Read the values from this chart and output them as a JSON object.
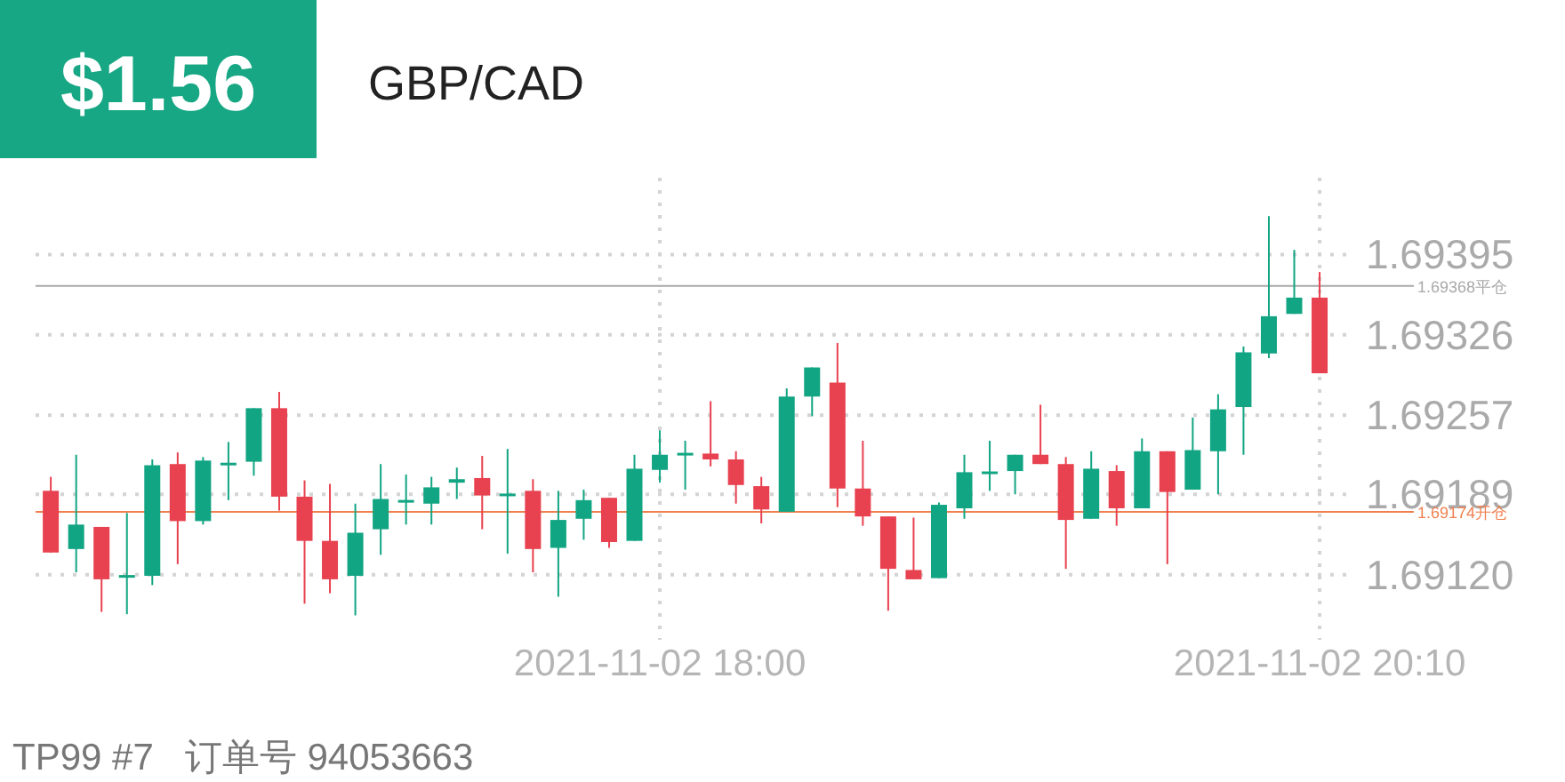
{
  "chart_data": {
    "type": "candlestick",
    "title": "GBP/CAD",
    "annotations": [
      "$1.56",
      "TP99 #7   订单号 94053663"
    ],
    "x": [
      "2021-11-02T16:00",
      "2021-11-02T16:05",
      "2021-11-02T16:10",
      "2021-11-02T16:15",
      "2021-11-02T16:20",
      "2021-11-02T16:25",
      "2021-11-02T16:30",
      "2021-11-02T16:35",
      "2021-11-02T16:40",
      "2021-11-02T16:45",
      "2021-11-02T16:50",
      "2021-11-02T16:55",
      "2021-11-02T17:00",
      "2021-11-02T17:05",
      "2021-11-02T17:10",
      "2021-11-02T17:15",
      "2021-11-02T17:20",
      "2021-11-02T17:25",
      "2021-11-02T17:30",
      "2021-11-02T17:35",
      "2021-11-02T17:40",
      "2021-11-02T17:45",
      "2021-11-02T17:50",
      "2021-11-02T17:55",
      "2021-11-02T18:00",
      "2021-11-02T18:05",
      "2021-11-02T18:10",
      "2021-11-02T18:15",
      "2021-11-02T18:20",
      "2021-11-02T18:25",
      "2021-11-02T18:30",
      "2021-11-02T18:35",
      "2021-11-02T18:40",
      "2021-11-02T18:45",
      "2021-11-02T18:50",
      "2021-11-02T18:55",
      "2021-11-02T19:00",
      "2021-11-02T19:05",
      "2021-11-02T19:10",
      "2021-11-02T19:15",
      "2021-11-02T19:20",
      "2021-11-02T19:25",
      "2021-11-02T19:30",
      "2021-11-02T19:35",
      "2021-11-02T19:40",
      "2021-11-02T19:45",
      "2021-11-02T19:50",
      "2021-11-02T19:55",
      "2021-11-02T20:00",
      "2021-11-02T20:05",
      "2021-11-02T20:10"
    ],
    "ohlc": [
      [
        1.69192,
        1.69204,
        1.69139,
        1.69139
      ],
      [
        1.69142,
        1.69223,
        1.69122,
        1.69163
      ],
      [
        1.69161,
        1.69161,
        1.69088,
        1.69116
      ],
      [
        1.69118,
        1.69173,
        1.69086,
        1.69119
      ],
      [
        1.69119,
        1.69219,
        1.69111,
        1.69214
      ],
      [
        1.69215,
        1.69225,
        1.69129,
        1.69166
      ],
      [
        1.69166,
        1.69221,
        1.69163,
        1.69218
      ],
      [
        1.69214,
        1.69234,
        1.69184,
        1.69216
      ],
      [
        1.69217,
        1.69263,
        1.69205,
        1.69263
      ],
      [
        1.69263,
        1.69277,
        1.69175,
        1.69187
      ],
      [
        1.69187,
        1.69201,
        1.69095,
        1.69149
      ],
      [
        1.69149,
        1.69198,
        1.69104,
        1.69116
      ],
      [
        1.69119,
        1.69181,
        1.69085,
        1.69156
      ],
      [
        1.69159,
        1.69215,
        1.69137,
        1.69185
      ],
      [
        1.69182,
        1.69206,
        1.69163,
        1.69184
      ],
      [
        1.69181,
        1.69204,
        1.69163,
        1.69195
      ],
      [
        1.69199,
        1.69212,
        1.69185,
        1.69202
      ],
      [
        1.69203,
        1.69222,
        1.69159,
        1.69188
      ],
      [
        1.69188,
        1.69228,
        1.69138,
        1.69189
      ],
      [
        1.69192,
        1.69202,
        1.69122,
        1.69142
      ],
      [
        1.69143,
        1.69192,
        1.69101,
        1.69167
      ],
      [
        1.69168,
        1.69193,
        1.6915,
        1.69184
      ],
      [
        1.69186,
        1.69186,
        1.69143,
        1.69148
      ],
      [
        1.69149,
        1.69223,
        1.69149,
        1.69211
      ],
      [
        1.6921,
        1.69244,
        1.69199,
        1.69223
      ],
      [
        1.69223,
        1.69235,
        1.69193,
        1.69224
      ],
      [
        1.69224,
        1.69269,
        1.69213,
        1.69219
      ],
      [
        1.69219,
        1.69226,
        1.69181,
        1.69197
      ],
      [
        1.69196,
        1.69204,
        1.69164,
        1.69176
      ],
      [
        1.69174,
        1.6928,
        1.69174,
        1.69273
      ],
      [
        1.69273,
        1.69298,
        1.69256,
        1.69298
      ],
      [
        1.69285,
        1.69319,
        1.69178,
        1.69194
      ],
      [
        1.69194,
        1.69235,
        1.69162,
        1.6917
      ],
      [
        1.6917,
        1.6917,
        1.69089,
        1.69125
      ],
      [
        1.69124,
        1.69169,
        1.69116,
        1.69116
      ],
      [
        1.69117,
        1.69182,
        1.69117,
        1.6918
      ],
      [
        1.69177,
        1.69223,
        1.69168,
        1.69208
      ],
      [
        1.69207,
        1.69235,
        1.69192,
        1.69208
      ],
      [
        1.69209,
        1.69223,
        1.69189,
        1.69223
      ],
      [
        1.69223,
        1.69266,
        1.69215,
        1.69215
      ],
      [
        1.69215,
        1.69221,
        1.69125,
        1.69167
      ],
      [
        1.69168,
        1.69226,
        1.69168,
        1.69211
      ],
      [
        1.69209,
        1.69214,
        1.69162,
        1.69177
      ],
      [
        1.69177,
        1.69237,
        1.69177,
        1.69226
      ],
      [
        1.69226,
        1.69226,
        1.69129,
        1.69191
      ],
      [
        1.69193,
        1.69255,
        1.69193,
        1.69227
      ],
      [
        1.69226,
        1.69275,
        1.69189,
        1.69262
      ],
      [
        1.69264,
        1.69316,
        1.69223,
        1.69311
      ],
      [
        1.6931,
        1.69428,
        1.69306,
        1.69342
      ],
      [
        1.69344,
        1.69399,
        1.69344,
        1.69358
      ],
      [
        1.69358,
        1.6938,
        1.69293,
        1.69293
      ]
    ],
    "colors": [
      "#e8414f",
      "#12a583",
      "#e8414f",
      "#12a583",
      "#12a583",
      "#e8414f",
      "#12a583",
      "#12a583",
      "#12a583",
      "#e8414f",
      "#e8414f",
      "#e8414f",
      "#12a583",
      "#12a583",
      "#12a583",
      "#12a583",
      "#12a583",
      "#e8414f",
      "#12a583",
      "#e8414f",
      "#12a583",
      "#12a583",
      "#e8414f",
      "#12a583",
      "#12a583",
      "#12a583",
      "#e8414f",
      "#e8414f",
      "#e8414f",
      "#12a583",
      "#12a583",
      "#e8414f",
      "#e8414f",
      "#e8414f",
      "#e8414f",
      "#12a583",
      "#12a583",
      "#12a583",
      "#12a583",
      "#e8414f",
      "#e8414f",
      "#12a583",
      "#e8414f",
      "#12a583",
      "#e8414f",
      "#12a583",
      "#12a583",
      "#12a583",
      "#12a583",
      "#12a583",
      "#e8414f"
    ],
    "xlim": [
      "2021-11-02T15:57",
      "2021-11-02T20:17"
    ],
    "xticks": [
      {
        "value": "2021-11-02T18:00",
        "label": "2021-11-02 18:00"
      },
      {
        "value": "2021-11-02T20:10",
        "label": "2021-11-02 20:10"
      }
    ],
    "ylim": [
      1.69064,
      1.69461
    ],
    "yticks": [
      {
        "value": 1.6912,
        "label": "1.69120"
      },
      1.69189,
      1.69257,
      1.69326,
      1.69395
    ],
    "ref_lines": [
      {
        "axis": "y",
        "value": 1.69368,
        "label": "1.69368平仓",
        "color": "#a8a8a8"
      },
      {
        "axis": "y",
        "value": 1.69174,
        "label": "1.69174开仓",
        "color": "#f0804f"
      }
    ],
    "grid": true
  }
}
